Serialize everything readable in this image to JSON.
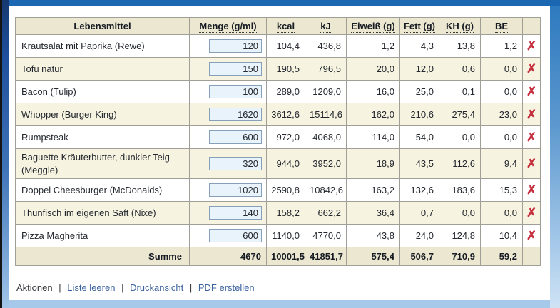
{
  "frame": {
    "top_bar_color": "#1c67b2",
    "left_strip_top_color": "#16386f",
    "right_strip_bottom_color": "#cfe3f5",
    "bottom_strip_color": "#a6c9ea"
  },
  "table": {
    "columns": [
      "Lebensmittel",
      "Menge (g/ml)",
      "kcal",
      "kJ",
      "Eiweiß (g)",
      "Fett (g)",
      "KH (g)",
      "BE"
    ],
    "rows": [
      {
        "name": "Krautsalat mit Paprika (Rewe)",
        "menge": "120",
        "kcal": "104,4",
        "kj": "436,8",
        "eiweiss": "1,2",
        "fett": "4,3",
        "kh": "13,8",
        "be": "1,2"
      },
      {
        "name": "Tofu natur",
        "menge": "150",
        "kcal": "190,5",
        "kj": "796,5",
        "eiweiss": "20,0",
        "fett": "12,0",
        "kh": "0,6",
        "be": "0,0"
      },
      {
        "name": "Bacon (Tulip)",
        "menge": "100",
        "kcal": "289,0",
        "kj": "1209,0",
        "eiweiss": "16,0",
        "fett": "25,0",
        "kh": "0,1",
        "be": "0,0"
      },
      {
        "name": "Whopper (Burger King)",
        "menge": "1620",
        "kcal": "3612,6",
        "kj": "15114,6",
        "eiweiss": "162,0",
        "fett": "210,6",
        "kh": "275,4",
        "be": "23,0"
      },
      {
        "name": "Rumpsteak",
        "menge": "600",
        "kcal": "972,0",
        "kj": "4068,0",
        "eiweiss": "114,0",
        "fett": "54,0",
        "kh": "0,0",
        "be": "0,0"
      },
      {
        "name": "Baguette Kräuterbutter, dunkler Teig (Meggle)",
        "menge": "320",
        "kcal": "944,0",
        "kj": "3952,0",
        "eiweiss": "18,9",
        "fett": "43,5",
        "kh": "112,6",
        "be": "9,4"
      },
      {
        "name": "Doppel Cheesburger (McDonalds)",
        "menge": "1020",
        "kcal": "2590,8",
        "kj": "10842,6",
        "eiweiss": "163,2",
        "fett": "132,6",
        "kh": "183,6",
        "be": "15,3"
      },
      {
        "name": "Thunfisch im eigenen Saft (Nixe)",
        "menge": "140",
        "kcal": "158,2",
        "kj": "662,2",
        "eiweiss": "36,4",
        "fett": "0,7",
        "kh": "0,0",
        "be": "0,0"
      },
      {
        "name": "Pizza Magherita",
        "menge": "600",
        "kcal": "1140,0",
        "kj": "4770,0",
        "eiweiss": "43,8",
        "fett": "24,0",
        "kh": "124,8",
        "be": "10,4"
      }
    ],
    "summe": {
      "label": "Summe",
      "menge": "4670",
      "kcal": "10001,5",
      "kj": "41851,7",
      "eiweiss": "575,4",
      "fett": "506,7",
      "kh": "710,9",
      "be": "59,2"
    }
  },
  "icons": {
    "delete": "✗"
  },
  "actions": {
    "label": "Aktionen",
    "separator": "|",
    "links": [
      "Liste leeren",
      "Druckansicht",
      "PDF erstellen"
    ]
  }
}
